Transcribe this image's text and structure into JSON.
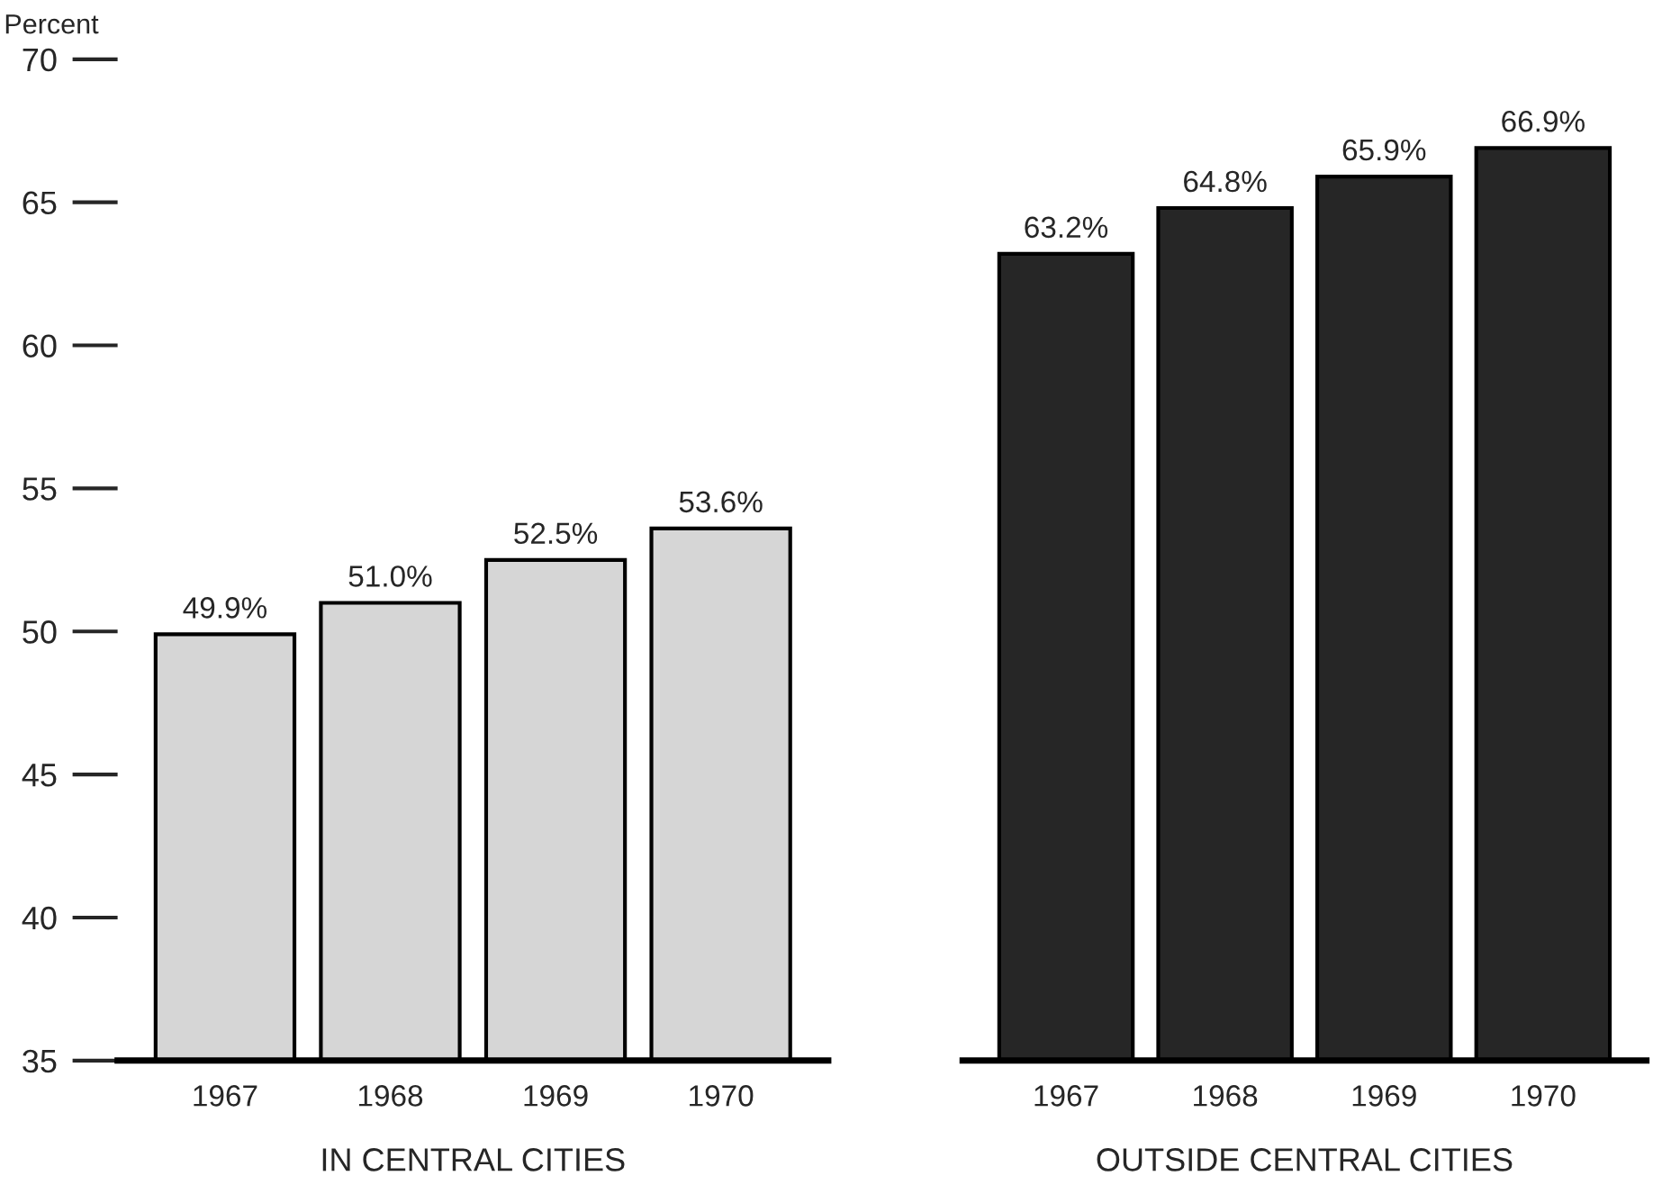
{
  "chart_data": [
    {
      "type": "bar",
      "ylabel": "Percent",
      "xlabel": "IN CENTRAL CITIES",
      "categories": [
        "1967",
        "1968",
        "1969",
        "1970"
      ],
      "series": [
        {
          "color": "#d6d6d6",
          "values": [
            49.9,
            51.0,
            52.5,
            53.6
          ],
          "value_labels": [
            "49.9%",
            "51.0%",
            "52.5%",
            "53.6%"
          ]
        }
      ],
      "ylim": [
        35,
        70
      ],
      "yticks": [
        35,
        40,
        45,
        50,
        55,
        60,
        65,
        70
      ],
      "grid": false
    },
    {
      "type": "bar",
      "xlabel": "OUTSIDE CENTRAL CITIES",
      "categories": [
        "1967",
        "1968",
        "1969",
        "1970"
      ],
      "series": [
        {
          "color": "#262626",
          "values": [
            63.2,
            64.8,
            65.9,
            66.9
          ],
          "value_labels": [
            "63.2%",
            "64.8%",
            "65.9%",
            "66.9%"
          ]
        }
      ],
      "ylim": [
        35,
        70
      ],
      "yticks": [
        35,
        40,
        45,
        50,
        55,
        60,
        65,
        70
      ],
      "grid": false,
      "tick_labels": "x"
    }
  ]
}
